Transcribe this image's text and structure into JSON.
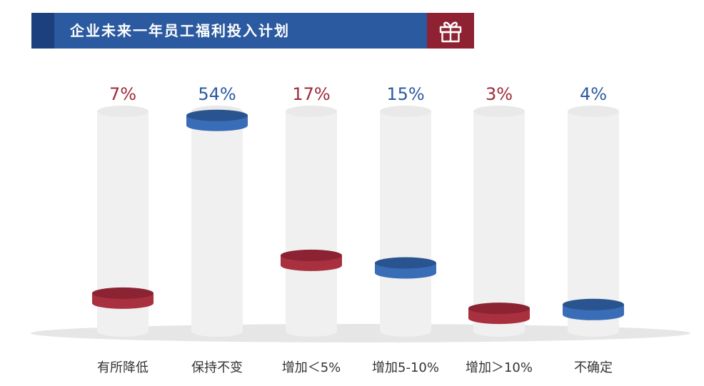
{
  "title": "企业未来一年员工福利投入计划",
  "icons": {
    "title_icon": "gift-icon"
  },
  "colors": {
    "title_bar": "#2c5aa0",
    "title_accent": "#1c3f7d",
    "gift_box": "#8e2232",
    "blue": "#2c5aa0",
    "red": "#9e2a3a",
    "cylinder": "#f0f0f0",
    "floor": "#e6e6e6"
  },
  "chart_data": {
    "type": "bar",
    "categories": [
      "有所降低",
      "保持不变",
      "增加＜5%",
      "增加5-10%",
      "增加＞10%",
      "不确定"
    ],
    "values": [
      7,
      54,
      17,
      15,
      3,
      4
    ],
    "value_labels": [
      "7%",
      "54%",
      "17%",
      "15%",
      "3%",
      "4%"
    ],
    "unit": "%",
    "ylim": [
      0,
      64
    ],
    "series_colors": [
      "red",
      "blue",
      "red",
      "blue",
      "red",
      "blue"
    ],
    "title": "企业未来一年员工福利投入计划",
    "xlabel": "",
    "ylabel": "",
    "grid": false,
    "legend": "none"
  }
}
